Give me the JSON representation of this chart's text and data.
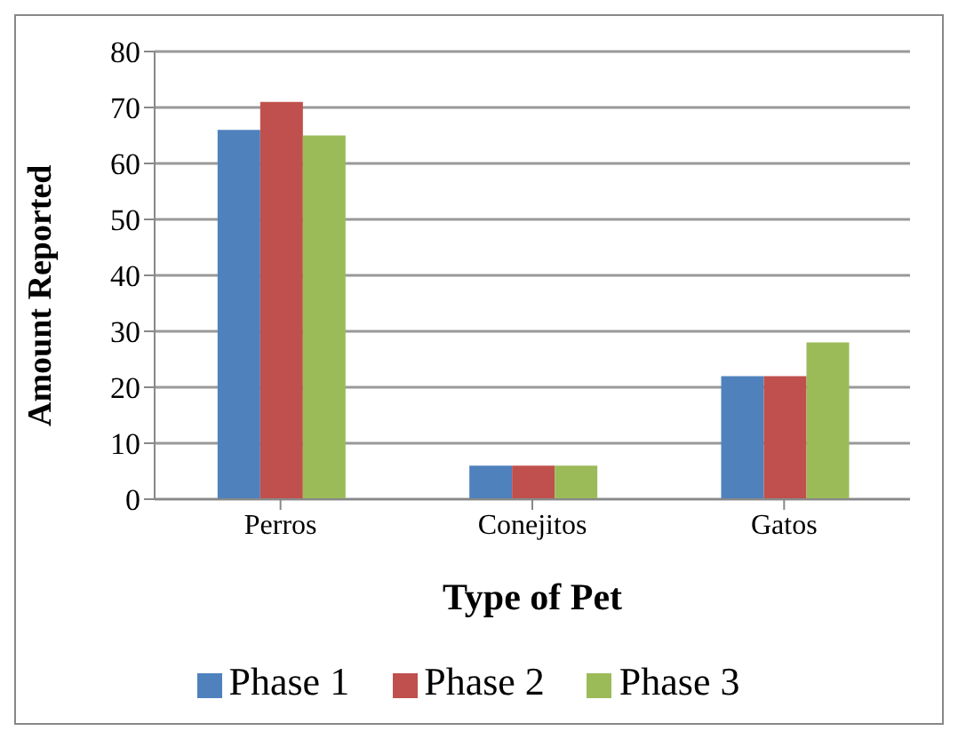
{
  "chart_data": {
    "type": "bar",
    "xlabel": "Type of Pet",
    "ylabel": "Amount Reported",
    "categories": [
      "Perros",
      "Conejitos",
      "Gatos"
    ],
    "series": [
      {
        "name": "Phase 1",
        "color": "#4f81bd",
        "values": [
          66,
          6,
          22
        ]
      },
      {
        "name": "Phase 2",
        "color": "#c0504d",
        "values": [
          71,
          6,
          22
        ]
      },
      {
        "name": "Phase 3",
        "color": "#9bbb59",
        "values": [
          65,
          6,
          28
        ]
      }
    ],
    "ylim": [
      0,
      80
    ],
    "yticks": [
      0,
      10,
      20,
      30,
      40,
      50,
      60,
      70,
      80
    ],
    "grid": "y",
    "legend": "bottom"
  }
}
